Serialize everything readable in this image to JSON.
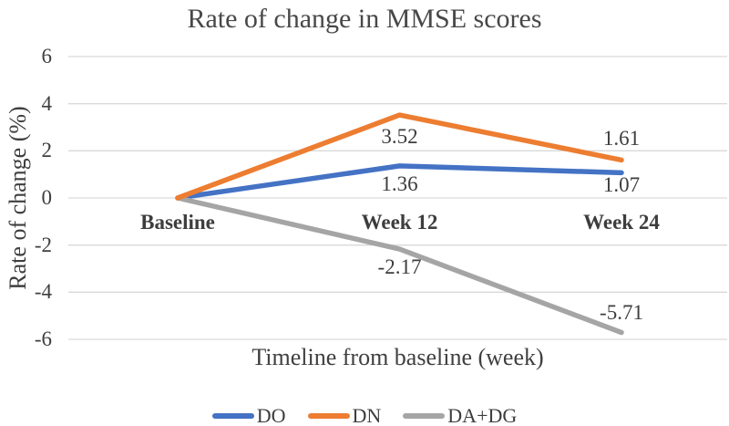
{
  "chart_data": {
    "type": "line",
    "title": "Rate of change in MMSE scores",
    "xlabel": "Timeline from baseline (week)",
    "ylabel": "Rate of change (%)",
    "categories": [
      "Baseline",
      "Week 12",
      "Week 24"
    ],
    "series": [
      {
        "name": "DO",
        "color": "#4472C4",
        "values": [
          0,
          1.36,
          1.07
        ],
        "point_labels": [
          "",
          "1.36",
          "1.07"
        ]
      },
      {
        "name": "DN",
        "color": "#ED7D31",
        "values": [
          0,
          3.52,
          1.61
        ],
        "point_labels": [
          "",
          "3.52",
          "1.61"
        ]
      },
      {
        "name": "DA+DG",
        "color": "#A5A5A5",
        "values": [
          0,
          -2.17,
          -5.71
        ],
        "point_labels": [
          "",
          "-2.17",
          "-5.71"
        ]
      }
    ],
    "y_ticks": [
      6,
      4,
      2,
      0,
      -2,
      -4,
      -6
    ],
    "ylim": [
      -6,
      6
    ],
    "grid": true,
    "legend_position": "bottom",
    "colors": {
      "gridline": "#d9d9d9",
      "text": "#3f3f3f",
      "title_text": "#484848"
    }
  }
}
